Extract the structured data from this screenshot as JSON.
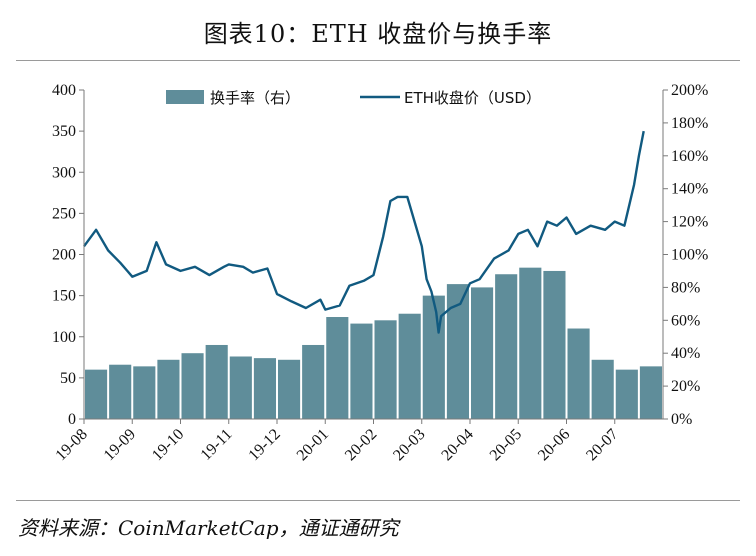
{
  "title": "图表10：ETH 收盘价与换手率",
  "source": "资料来源：CoinMarketCap，通证通研究",
  "colors": {
    "bar": "#5f8d9a",
    "line": "#115a80",
    "axis": "#7a7a7a"
  },
  "chart_data": {
    "type": "bar+line",
    "legend": [
      "换手率（右）",
      "ETH收盘价（USD）"
    ],
    "legend_position": "top",
    "grid": false,
    "x_ticks": [
      "19-08",
      "19-09",
      "19-10",
      "19-11",
      "19-12",
      "20-01",
      "20-02",
      "20-03",
      "20-04",
      "20-05",
      "20-06",
      "20-07"
    ],
    "y_left": {
      "ticks": [
        "0",
        "50",
        "100",
        "150",
        "200",
        "250",
        "300",
        "350",
        "400"
      ],
      "range": [
        0,
        400
      ]
    },
    "y_right": {
      "ticks": [
        "0%",
        "20%",
        "40%",
        "60%",
        "80%",
        "100%",
        "120%",
        "140%",
        "160%",
        "180%",
        "200%"
      ],
      "range": [
        0,
        2
      ]
    },
    "series": [
      {
        "name": "换手率（右）",
        "type": "bar",
        "axis": "right",
        "x": [
          0,
          0.5,
          1,
          1.5,
          2,
          2.5,
          3,
          3.5,
          4,
          4.5,
          5,
          5.5,
          6,
          6.5,
          7,
          7.5,
          8,
          8.5,
          9,
          9.5,
          10,
          10.5,
          11,
          11.5
        ],
        "values": [
          0.3,
          0.33,
          0.32,
          0.36,
          0.4,
          0.45,
          0.38,
          0.37,
          0.36,
          0.45,
          0.62,
          0.58,
          0.6,
          0.64,
          0.75,
          0.82,
          0.8,
          0.88,
          0.92,
          0.9,
          0.55,
          0.36,
          0.3,
          0.32
        ]
      },
      {
        "name": "ETH收盘价（USD）",
        "type": "line",
        "axis": "left",
        "x": [
          0,
          0.25,
          0.5,
          0.75,
          1,
          1.3,
          1.5,
          1.7,
          2,
          2.3,
          2.6,
          2.9,
          3,
          3.3,
          3.5,
          3.8,
          4,
          4.3,
          4.6,
          4.9,
          5,
          5.3,
          5.5,
          5.8,
          6,
          6.2,
          6.35,
          6.5,
          6.7,
          7,
          7.1,
          7.2,
          7.3,
          7.35,
          7.4,
          7.6,
          7.8,
          8,
          8.2,
          8.5,
          8.8,
          9,
          9.2,
          9.4,
          9.6,
          9.8,
          10,
          10.2,
          10.5,
          10.8,
          11,
          11.2,
          11.4,
          11.5,
          11.6
        ],
        "values": [
          210,
          230,
          205,
          190,
          173,
          180,
          215,
          188,
          180,
          185,
          175,
          185,
          188,
          185,
          178,
          183,
          152,
          143,
          135,
          145,
          133,
          138,
          162,
          168,
          175,
          222,
          265,
          270,
          270,
          210,
          170,
          155,
          130,
          105,
          125,
          135,
          140,
          165,
          170,
          195,
          205,
          225,
          230,
          210,
          240,
          235,
          245,
          225,
          235,
          230,
          240,
          235,
          285,
          320,
          350
        ]
      }
    ]
  }
}
